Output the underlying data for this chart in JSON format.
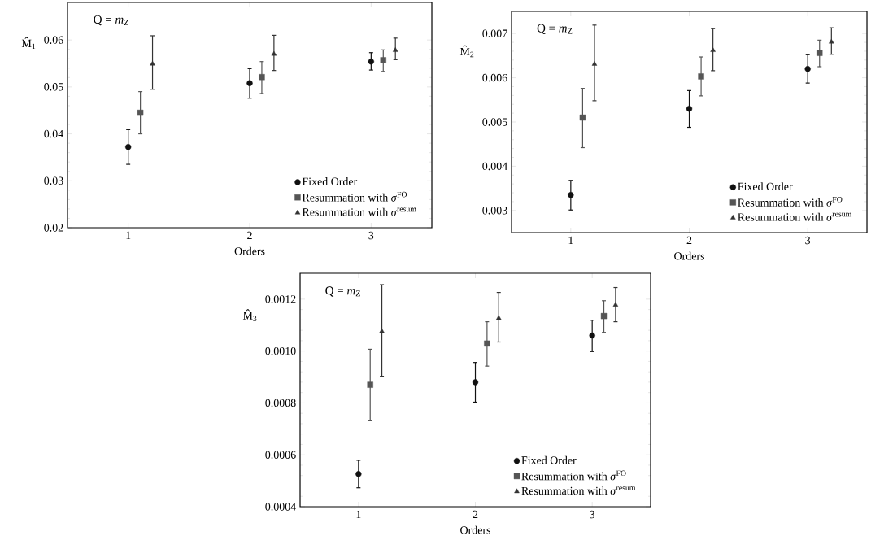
{
  "chart_data": [
    {
      "type": "scatter",
      "xlabel": "Orders",
      "ylabel": "M̂$_{1}$",
      "annotations": [
        "Q = *m*$_{Z}$"
      ],
      "xlim": [
        0.5,
        3.5
      ],
      "ylim": [
        0.02,
        0.068
      ],
      "xticks": [
        1,
        2,
        3
      ],
      "yticks": [
        0.02,
        0.03,
        0.04,
        0.05,
        0.06
      ],
      "legend": "bottom right",
      "grid": false,
      "series": [
        {
          "name": "Fixed Order",
          "color": "#111111",
          "marker": "circle",
          "x": [
            1,
            2,
            3
          ],
          "values": [
            0.0372,
            0.0508,
            0.0554
          ],
          "errors": [
            [
              0.0335,
              0.0409
            ],
            [
              0.0476,
              0.0539
            ],
            [
              0.0536,
              0.0573
            ]
          ]
        },
        {
          "name": "Resummation with *σ*$^{FO}$",
          "color": "#555555",
          "marker": "square",
          "x": [
            1.1,
            2.1,
            3.1
          ],
          "values": [
            0.0445,
            0.0521,
            0.0557
          ],
          "errors": [
            [
              0.04,
              0.049
            ],
            [
              0.0486,
              0.0554
            ],
            [
              0.0533,
              0.0579
            ]
          ]
        },
        {
          "name": "Resummation with *σ*$^{resum}$",
          "color": "#333333",
          "marker": "triangle",
          "x": [
            1.2,
            2.2,
            3.2
          ],
          "values": [
            0.0549,
            0.057,
            0.0578
          ],
          "errors": [
            [
              0.0495,
              0.0609
            ],
            [
              0.0535,
              0.061
            ],
            [
              0.0558,
              0.0604
            ]
          ]
        }
      ]
    },
    {
      "type": "scatter",
      "xlabel": "Orders",
      "ylabel": "M̂$_{2}$",
      "annotations": [
        "Q = *m*$_{Z}$"
      ],
      "xlim": [
        0.5,
        3.5
      ],
      "ylim": [
        0.0025,
        0.0075
      ],
      "xticks": [
        1,
        2,
        3
      ],
      "yticks": [
        0.003,
        0.004,
        0.005,
        0.006,
        0.007
      ],
      "legend": "bottom right",
      "grid": false,
      "series": [
        {
          "name": "Fixed Order",
          "color": "#111111",
          "marker": "circle",
          "x": [
            1,
            2,
            3
          ],
          "values": [
            0.00335,
            0.0053,
            0.0062
          ],
          "errors": [
            [
              0.00301,
              0.00368
            ],
            [
              0.00488,
              0.00571
            ],
            [
              0.00588,
              0.00652
            ]
          ]
        },
        {
          "name": "Resummation with *σ*$^{FO}$",
          "color": "#555555",
          "marker": "square",
          "x": [
            1.1,
            2.1,
            3.1
          ],
          "values": [
            0.0051,
            0.00603,
            0.00656
          ],
          "errors": [
            [
              0.00442,
              0.00576
            ],
            [
              0.00559,
              0.00647
            ],
            [
              0.00625,
              0.00685
            ]
          ]
        },
        {
          "name": "Resummation with *σ*$^{resum}$",
          "color": "#333333",
          "marker": "triangle",
          "x": [
            1.2,
            2.2,
            3.2
          ],
          "values": [
            0.00631,
            0.00662,
            0.00681
          ],
          "errors": [
            [
              0.00548,
              0.00719
            ],
            [
              0.00616,
              0.00711
            ],
            [
              0.00653,
              0.00713
            ]
          ]
        }
      ]
    },
    {
      "type": "scatter",
      "xlabel": "Orders",
      "ylabel": "M̂$_{3}$",
      "annotations": [
        "Q = *m*$_{Z}$"
      ],
      "xlim": [
        0.5,
        3.5
      ],
      "ylim": [
        0.0004,
        0.0013
      ],
      "xticks": [
        1,
        2,
        3
      ],
      "yticks": [
        {
          "value": 0.0004,
          "label": "0.0004"
        },
        {
          "value": 0.0006,
          "label": "0.0006"
        },
        {
          "value": 0.0008,
          "label": "0.0008"
        },
        {
          "value": 0.001,
          "label": "0.0010"
        },
        {
          "value": 0.0012,
          "label": "0.0012"
        }
      ],
      "legend": "bottom right",
      "grid": false,
      "series": [
        {
          "name": "Fixed Order",
          "color": "#111111",
          "marker": "circle",
          "x": [
            1,
            2,
            3
          ],
          "values": [
            0.000526,
            0.00088,
            0.00106
          ],
          "errors": [
            [
              0.000473,
              0.000579
            ],
            [
              0.000803,
              0.000956
            ],
            [
              0.000998,
              0.001119
            ]
          ]
        },
        {
          "name": "Resummation with *σ*$^{FO}$",
          "color": "#555555",
          "marker": "square",
          "x": [
            1.1,
            2.1,
            3.1
          ],
          "values": [
            0.00087,
            0.001029,
            0.001135
          ],
          "errors": [
            [
              0.000731,
              0.001007
            ],
            [
              0.000942,
              0.001113
            ],
            [
              0.001072,
              0.001194
            ]
          ]
        },
        {
          "name": "Resummation with *σ*$^{resum}$",
          "color": "#333333",
          "marker": "triangle",
          "x": [
            1.2,
            2.2,
            3.2
          ],
          "values": [
            0.001076,
            0.001127,
            0.001178
          ],
          "errors": [
            [
              0.000903,
              0.001256
            ],
            [
              0.001035,
              0.001226
            ],
            [
              0.001113,
              0.001245
            ]
          ]
        }
      ]
    }
  ]
}
